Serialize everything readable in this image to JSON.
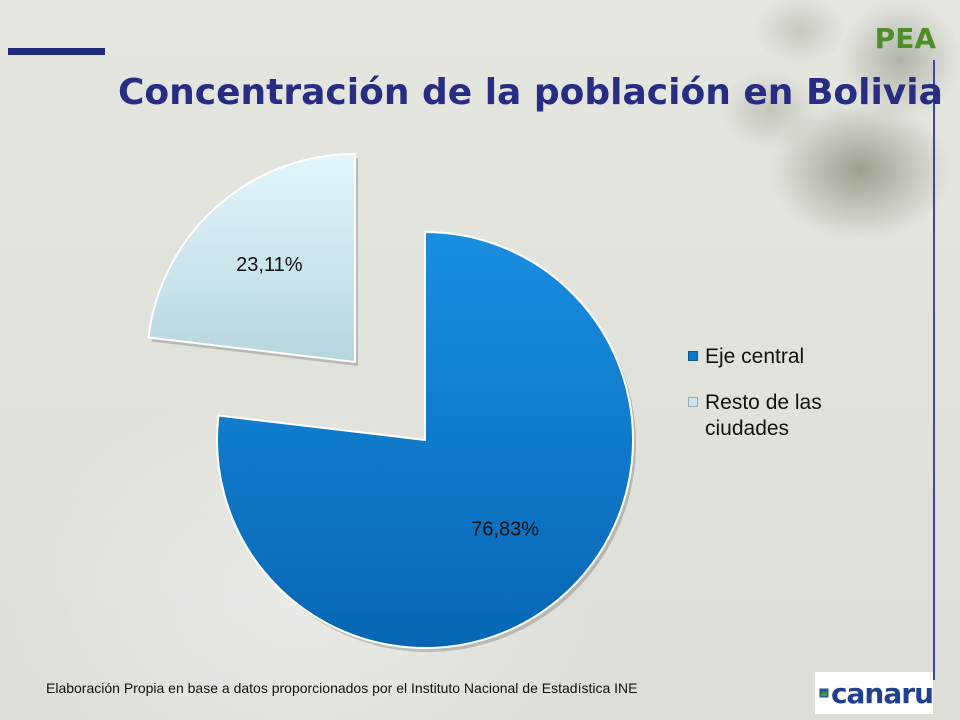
{
  "header": {
    "brand": "PEA",
    "title": "Concentración de la población en Bolivia"
  },
  "chart_data": {
    "type": "pie",
    "title": "Concentración de la población en Bolivia",
    "exploded": true,
    "legend_position": "right",
    "slices": [
      {
        "label": "Eje central",
        "value": 76.83,
        "display": "76,83%",
        "color": "#0a78c8"
      },
      {
        "label": "Resto de las ciudades",
        "value": 23.11,
        "display": "23,11%",
        "color": "#c8e6ee"
      }
    ]
  },
  "legend": {
    "items": [
      {
        "label": "Eje central",
        "color": "#0a78c8"
      },
      {
        "label": "Resto de las ciudades",
        "color": "#c8e6ee"
      }
    ]
  },
  "footer": {
    "source": "Elaboración Propia en base a datos proporcionados por el Instituto Nacional de Estadística INE",
    "logo_text": "canaru"
  }
}
